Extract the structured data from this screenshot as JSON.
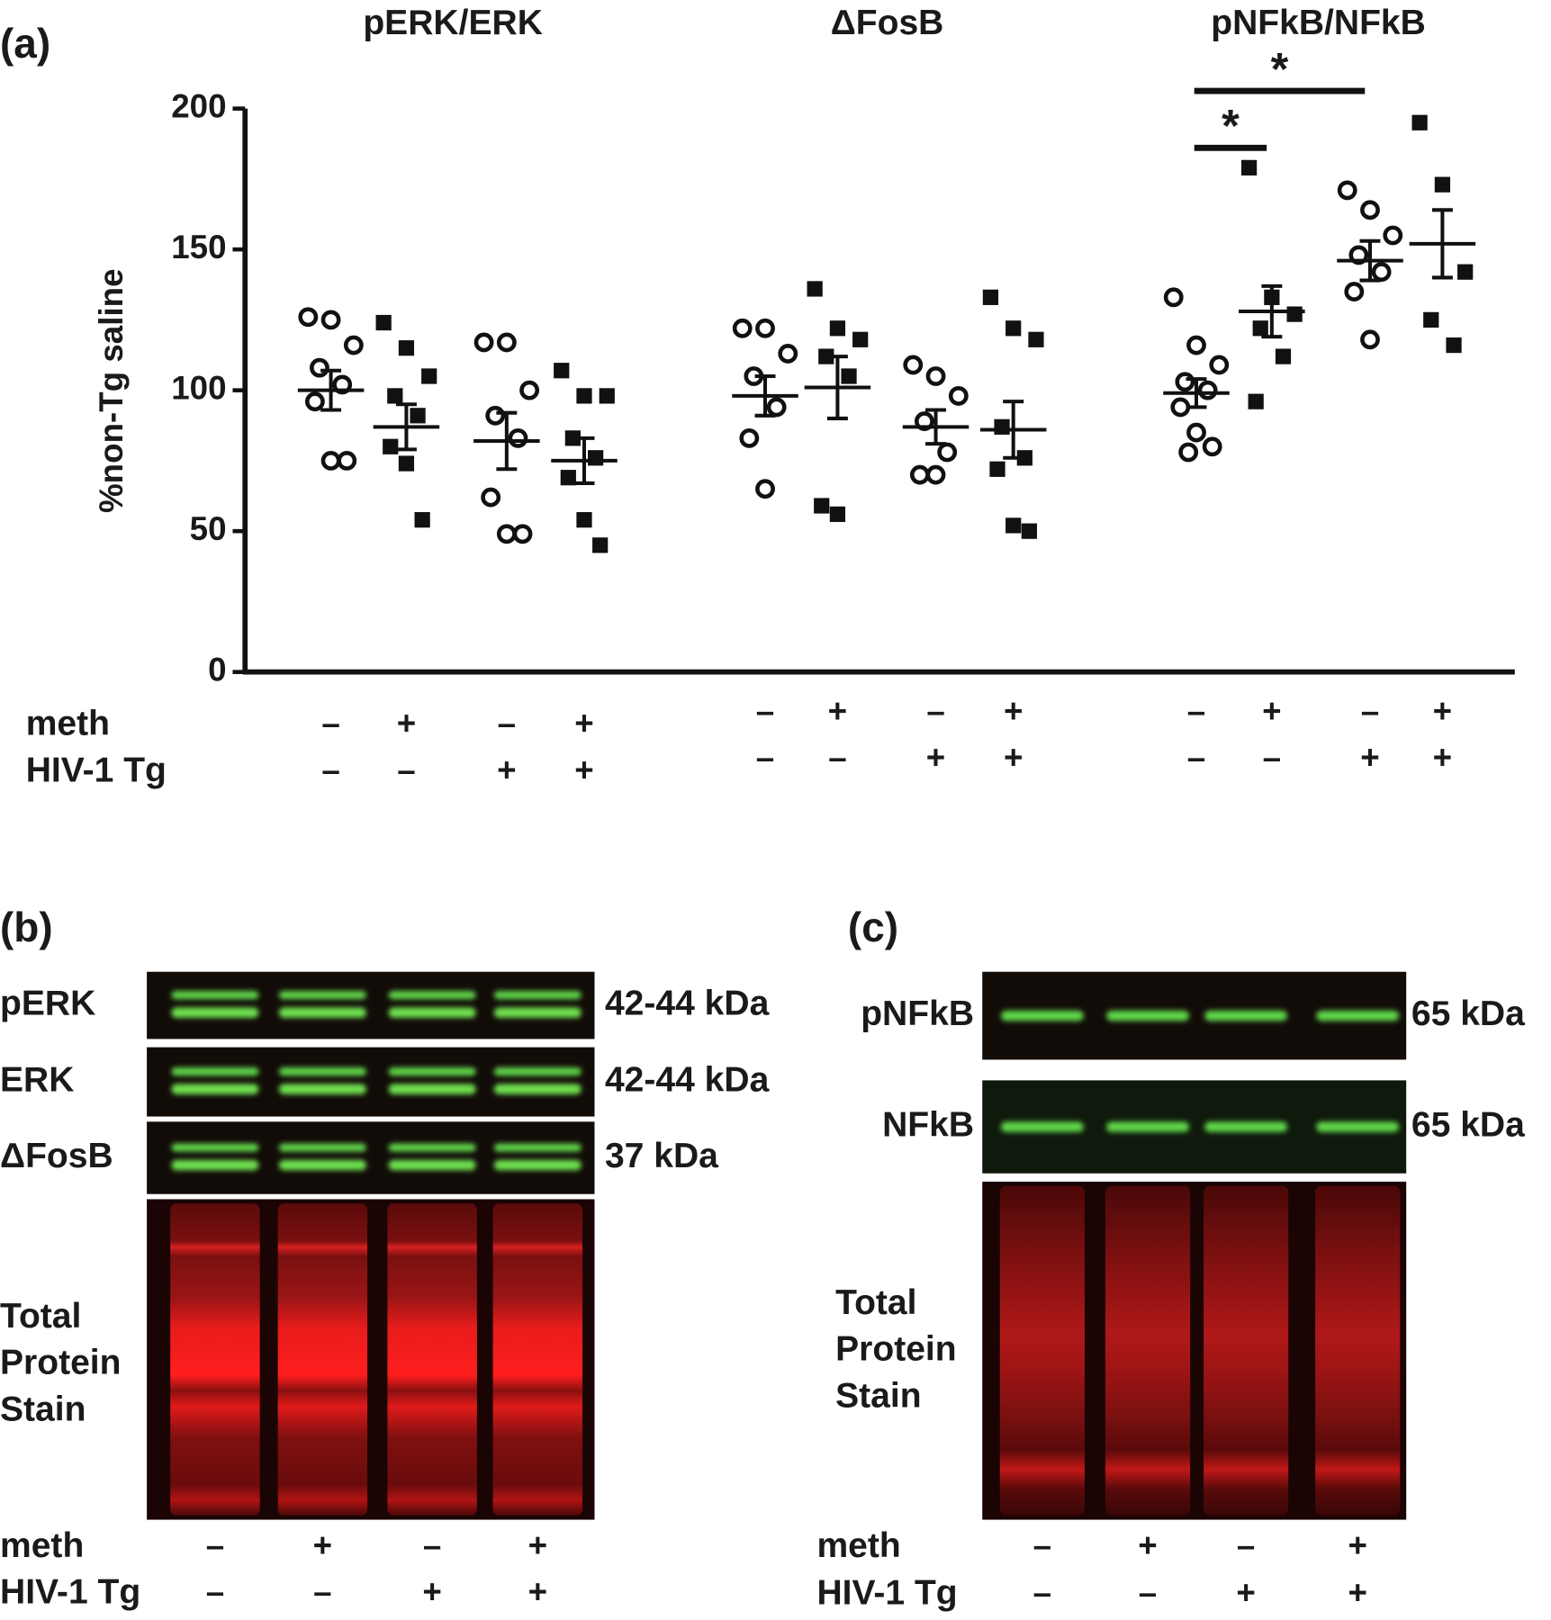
{
  "panel_labels": [
    "(a)",
    "(b)",
    "(c)"
  ],
  "chart_data": {
    "type": "dot",
    "y_label": "%non-Tg saline",
    "ylim": [
      0,
      200
    ],
    "yticks": [
      0,
      50,
      100,
      150,
      200
    ],
    "row_labels": [
      "meth",
      "HIV-1 Tg"
    ],
    "groups": [
      {
        "title": "pERK/ERK",
        "meth": [
          "–",
          "+",
          "–",
          "+"
        ],
        "hiv": [
          "–",
          "–",
          "+",
          "+"
        ],
        "series": [
          {
            "marker": "open-circle",
            "values": [
              126,
              125,
              116,
              108,
              102,
              96,
              75,
              75
            ],
            "mean": 100,
            "sem": 7
          },
          {
            "marker": "filled-square",
            "values": [
              124,
              115,
              105,
              98,
              91,
              80,
              74,
              54
            ],
            "mean": 87,
            "sem": 8
          },
          {
            "marker": "open-circle",
            "values": [
              117,
              117,
              100,
              91,
              83,
              62,
              49,
              49
            ],
            "mean": 82,
            "sem": 10
          },
          {
            "marker": "filled-square",
            "values": [
              107,
              98,
              98,
              83,
              76,
              69,
              54,
              45
            ],
            "mean": 75,
            "sem": 8
          }
        ]
      },
      {
        "title": "ΔFosB",
        "meth": [
          "–",
          "+",
          "–",
          "+"
        ],
        "hiv": [
          "–",
          "–",
          "+",
          "+"
        ],
        "series": [
          {
            "marker": "open-circle",
            "values": [
              122,
              122,
              113,
              105,
              94,
              83,
              65
            ],
            "mean": 98,
            "sem": 7
          },
          {
            "marker": "filled-square",
            "values": [
              136,
              122,
              118,
              112,
              105,
              59,
              56
            ],
            "mean": 101,
            "sem": 11
          },
          {
            "marker": "open-circle",
            "values": [
              109,
              105,
              98,
              89,
              78,
              70,
              70
            ],
            "mean": 87,
            "sem": 6
          },
          {
            "marker": "filled-square",
            "values": [
              133,
              122,
              118,
              87,
              76,
              72,
              52,
              50
            ],
            "mean": 86,
            "sem": 10
          }
        ]
      },
      {
        "title": "pNFkB/NFkB",
        "meth": [
          "–",
          "+",
          "–",
          "+"
        ],
        "hiv": [
          "–",
          "–",
          "+",
          "+"
        ],
        "series": [
          {
            "marker": "open-circle",
            "values": [
              133,
              116,
              109,
              103,
              100,
              94,
              85,
              80,
              78
            ],
            "mean": 99,
            "sem": 5
          },
          {
            "marker": "filled-square",
            "values": [
              179,
              133,
              127,
              122,
              112,
              96
            ],
            "mean": 128,
            "sem": 9
          },
          {
            "marker": "open-circle",
            "values": [
              171,
              164,
              155,
              148,
              142,
              135,
              118
            ],
            "mean": 146,
            "sem": 7
          },
          {
            "marker": "filled-square",
            "values": [
              195,
              173,
              142,
              125,
              116
            ],
            "mean": 152,
            "sem": 12
          }
        ]
      }
    ],
    "significance": [
      {
        "label": "*",
        "group": 2,
        "from": 0,
        "to": 2
      },
      {
        "label": "*",
        "group": 2,
        "from": 0,
        "to": 1
      }
    ]
  },
  "blots": [
    {
      "rows": [
        {
          "name": "pERK",
          "size": "42-44 kDa"
        },
        {
          "name": "ERK",
          "size": "42-44 kDa"
        },
        {
          "name": "ΔFosB",
          "size": "37 kDa"
        }
      ],
      "stain": [
        "Total",
        "Protein",
        "Stain"
      ],
      "row_labels": [
        "meth",
        "HIV-1 Tg"
      ],
      "meth": [
        "–",
        "+",
        "–",
        "+"
      ],
      "hiv": [
        "–",
        "–",
        "+",
        "+"
      ]
    },
    {
      "rows": [
        {
          "name": "pNFkB",
          "size": "65 kDa"
        },
        {
          "name": "NFkB",
          "size": "65 kDa"
        }
      ],
      "stain": [
        "Total",
        "Protein",
        "Stain"
      ],
      "row_labels": [
        "meth",
        "HIV-1 Tg"
      ],
      "meth": [
        "–",
        "+",
        "–",
        "+"
      ],
      "hiv": [
        "–",
        "–",
        "+",
        "+"
      ]
    }
  ]
}
